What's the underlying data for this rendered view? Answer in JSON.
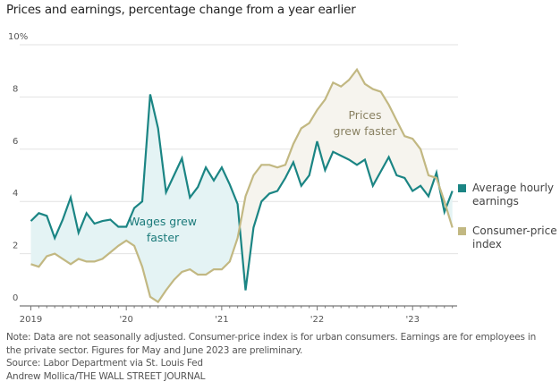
{
  "chart_data": {
    "type": "line",
    "title": "Prices and earnings, percentage change from a year earlier",
    "xlabel": "",
    "ylabel": "",
    "ylim": [
      0,
      10
    ],
    "yticks": [
      0,
      2,
      4,
      6,
      8,
      10
    ],
    "ytick_labels": [
      "0",
      "2",
      "4",
      "6",
      "8",
      "10%"
    ],
    "xtick_labels": [
      "2019",
      "'20",
      "'21",
      "'22",
      "'23"
    ],
    "x_start": "2019-01",
    "x_end": "2023-06",
    "x": [
      "2019-01",
      "2019-02",
      "2019-03",
      "2019-04",
      "2019-05",
      "2019-06",
      "2019-07",
      "2019-08",
      "2019-09",
      "2019-10",
      "2019-11",
      "2019-12",
      "2020-01",
      "2020-02",
      "2020-03",
      "2020-04",
      "2020-05",
      "2020-06",
      "2020-07",
      "2020-08",
      "2020-09",
      "2020-10",
      "2020-11",
      "2020-12",
      "2021-01",
      "2021-02",
      "2021-03",
      "2021-04",
      "2021-05",
      "2021-06",
      "2021-07",
      "2021-08",
      "2021-09",
      "2021-10",
      "2021-11",
      "2021-12",
      "2022-01",
      "2022-02",
      "2022-03",
      "2022-04",
      "2022-05",
      "2022-06",
      "2022-07",
      "2022-08",
      "2022-09",
      "2022-10",
      "2022-11",
      "2022-12",
      "2023-01",
      "2023-02",
      "2023-03",
      "2023-04",
      "2023-05",
      "2023-06"
    ],
    "grid": true,
    "legend_position": "right",
    "series": [
      {
        "name": "Average hourly earnings",
        "color": "#1b8584",
        "values": [
          3.25,
          3.55,
          3.45,
          2.6,
          3.3,
          4.15,
          2.8,
          3.55,
          3.15,
          3.25,
          3.3,
          3.03,
          3.03,
          3.75,
          4.0,
          8.1,
          6.8,
          4.35,
          5.0,
          5.65,
          4.15,
          4.55,
          5.3,
          4.8,
          5.3,
          4.65,
          3.9,
          0.6,
          3.0,
          4.0,
          4.3,
          4.4,
          4.9,
          5.5,
          4.6,
          5.0,
          6.3,
          5.2,
          5.9,
          5.75,
          5.6,
          5.4,
          5.6,
          4.6,
          5.15,
          5.7,
          5.0,
          4.9,
          4.4,
          4.6,
          4.2,
          5.1,
          3.6,
          4.4
        ]
      },
      {
        "name": "Consumer-price index",
        "color": "#c2b882",
        "values": [
          1.6,
          1.5,
          1.9,
          2.0,
          1.8,
          1.6,
          1.8,
          1.7,
          1.7,
          1.8,
          2.05,
          2.3,
          2.5,
          2.3,
          1.5,
          0.35,
          0.15,
          0.6,
          1.0,
          1.3,
          1.4,
          1.2,
          1.2,
          1.4,
          1.4,
          1.7,
          2.6,
          4.2,
          5.0,
          5.4,
          5.4,
          5.3,
          5.4,
          6.2,
          6.8,
          7.0,
          7.5,
          7.9,
          8.55,
          8.4,
          8.65,
          9.05,
          8.5,
          8.3,
          8.2,
          7.7,
          7.1,
          6.5,
          6.4,
          6.0,
          5.0,
          4.9,
          4.0,
          3.0
        ]
      }
    ],
    "annotations": [
      {
        "text_lines": [
          "Wages grew",
          "faster"
        ],
        "color": "#1b7a7a"
      },
      {
        "text_lines": [
          "Prices",
          "grew faster"
        ],
        "color": "#8a8263"
      }
    ],
    "fill_colors": {
      "wages_faster": "#e4f3f4",
      "prices_faster": "#f6f4ee"
    }
  },
  "legend": {
    "items": [
      {
        "label": "Average hourly earnings",
        "color": "#1b8584"
      },
      {
        "label": "Consumer-price index",
        "color": "#c2b882"
      }
    ]
  },
  "notes": {
    "note": "Note: Data are not seasonally adjusted. Consumer-price index is for urban consumers. Earnings are for employees in the private sector. Figures for May and June 2023 are preliminary.",
    "source": "Source: Labor Department via St. Louis Fed",
    "credit": "Andrew Mollica/THE WALL STREET JOURNAL"
  }
}
